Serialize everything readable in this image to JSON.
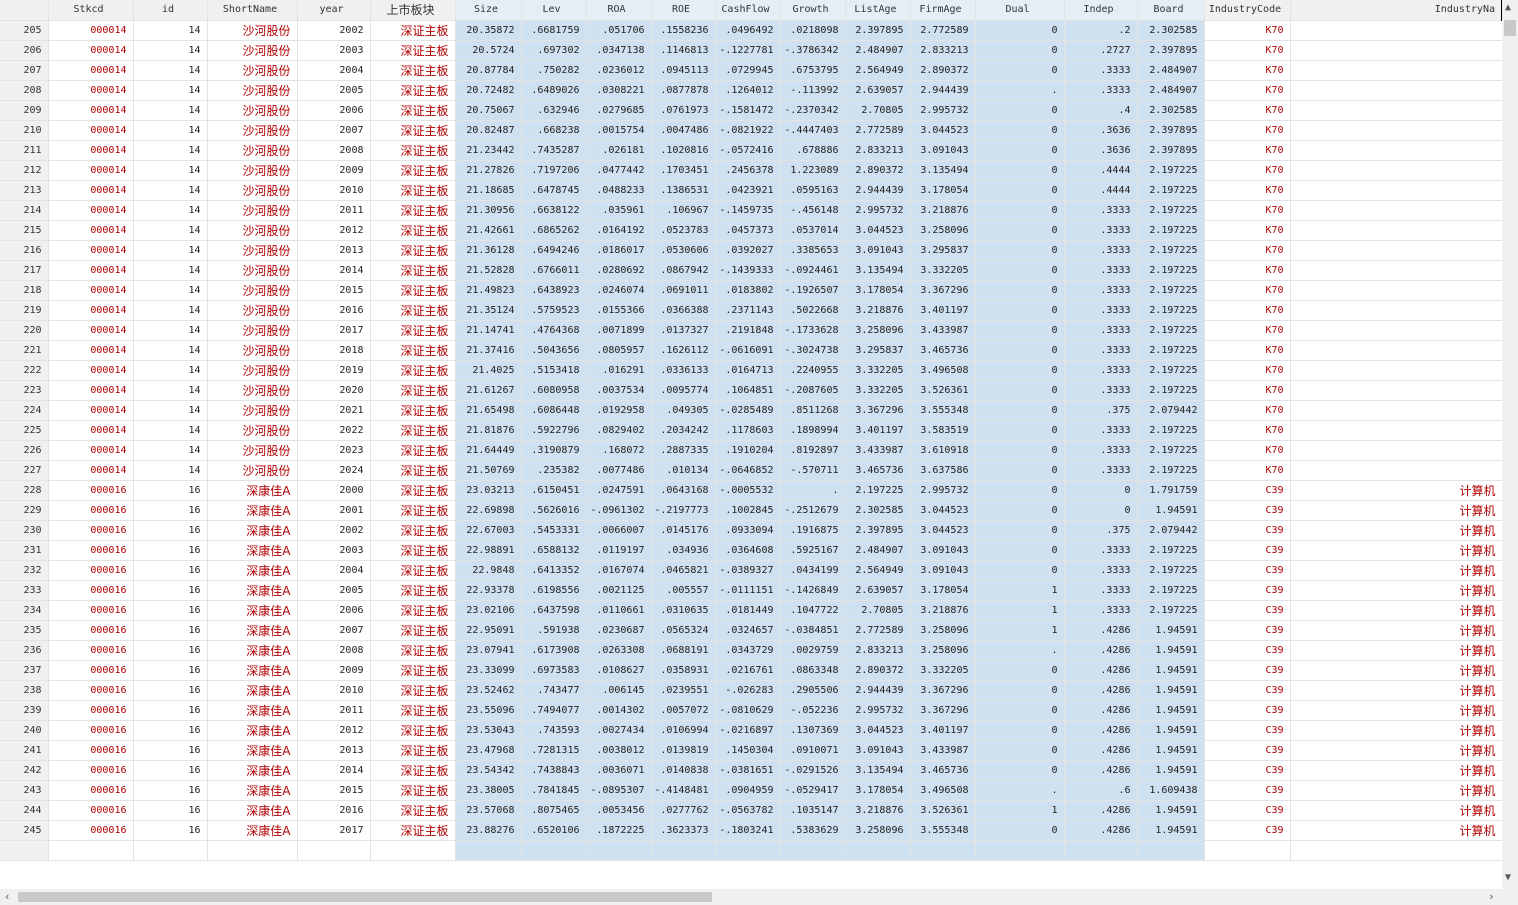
{
  "columns": [
    "",
    "Stkcd",
    "id",
    "ShortName",
    "year",
    "上市板块",
    "Size",
    "Lev",
    "ROA",
    "ROE",
    "CashFlow",
    "Growth",
    "ListAge",
    "FirmAge",
    "Dual",
    "Indep",
    "Board",
    "IndustryCode",
    "IndustryNa"
  ],
  "selected_columns": [
    "Size",
    "Lev",
    "ROA",
    "ROE",
    "CashFlow",
    "Growth",
    "ListAge",
    "FirmAge",
    "Dual",
    "Indep",
    "Board"
  ],
  "colors": {
    "string_text": "#b00000",
    "selection": "#cfe1f1"
  },
  "rows": [
    [
      "205",
      "000014",
      "14",
      "沙河股份",
      "2002",
      "深证主板",
      "20.35872",
      ".6681759",
      ".051706",
      ".1558236",
      ".0496492",
      ".0218098",
      "2.397895",
      "2.772589",
      "0",
      ".2",
      "2.302585",
      "K70",
      ""
    ],
    [
      "206",
      "000014",
      "14",
      "沙河股份",
      "2003",
      "深证主板",
      "20.5724",
      ".697302",
      ".0347138",
      ".1146813",
      "-.1227781",
      "-.3786342",
      "2.484907",
      "2.833213",
      "0",
      ".2727",
      "2.397895",
      "K70",
      ""
    ],
    [
      "207",
      "000014",
      "14",
      "沙河股份",
      "2004",
      "深证主板",
      "20.87784",
      ".750282",
      ".0236012",
      ".0945113",
      ".0729945",
      ".6753795",
      "2.564949",
      "2.890372",
      "0",
      ".3333",
      "2.484907",
      "K70",
      ""
    ],
    [
      "208",
      "000014",
      "14",
      "沙河股份",
      "2005",
      "深证主板",
      "20.72482",
      ".6489026",
      ".0308221",
      ".0877878",
      ".1264012",
      "-.113992",
      "2.639057",
      "2.944439",
      ".",
      ".3333",
      "2.484907",
      "K70",
      ""
    ],
    [
      "209",
      "000014",
      "14",
      "沙河股份",
      "2006",
      "深证主板",
      "20.75067",
      ".632946",
      ".0279685",
      ".0761973",
      "-.1581472",
      "-.2370342",
      "2.70805",
      "2.995732",
      "0",
      ".4",
      "2.302585",
      "K70",
      ""
    ],
    [
      "210",
      "000014",
      "14",
      "沙河股份",
      "2007",
      "深证主板",
      "20.82487",
      ".668238",
      ".0015754",
      ".0047486",
      "-.0821922",
      "-.4447403",
      "2.772589",
      "3.044523",
      "0",
      ".3636",
      "2.397895",
      "K70",
      ""
    ],
    [
      "211",
      "000014",
      "14",
      "沙河股份",
      "2008",
      "深证主板",
      "21.23442",
      ".7435287",
      ".026181",
      ".1020816",
      "-.0572416",
      ".678886",
      "2.833213",
      "3.091043",
      "0",
      ".3636",
      "2.397895",
      "K70",
      ""
    ],
    [
      "212",
      "000014",
      "14",
      "沙河股份",
      "2009",
      "深证主板",
      "21.27826",
      ".7197206",
      ".0477442",
      ".1703451",
      ".2456378",
      "1.223089",
      "2.890372",
      "3.135494",
      "0",
      ".4444",
      "2.197225",
      "K70",
      ""
    ],
    [
      "213",
      "000014",
      "14",
      "沙河股份",
      "2010",
      "深证主板",
      "21.18685",
      ".6478745",
      ".0488233",
      ".1386531",
      ".0423921",
      ".0595163",
      "2.944439",
      "3.178054",
      "0",
      ".4444",
      "2.197225",
      "K70",
      ""
    ],
    [
      "214",
      "000014",
      "14",
      "沙河股份",
      "2011",
      "深证主板",
      "21.30956",
      ".6638122",
      ".035961",
      ".106967",
      "-.1459735",
      "-.456148",
      "2.995732",
      "3.218876",
      "0",
      ".3333",
      "2.197225",
      "K70",
      ""
    ],
    [
      "215",
      "000014",
      "14",
      "沙河股份",
      "2012",
      "深证主板",
      "21.42661",
      ".6865262",
      ".0164192",
      ".0523783",
      ".0457373",
      ".0537014",
      "3.044523",
      "3.258096",
      "0",
      ".3333",
      "2.197225",
      "K70",
      ""
    ],
    [
      "216",
      "000014",
      "14",
      "沙河股份",
      "2013",
      "深证主板",
      "21.36128",
      ".6494246",
      ".0186017",
      ".0530606",
      ".0392027",
      ".3385653",
      "3.091043",
      "3.295837",
      "0",
      ".3333",
      "2.197225",
      "K70",
      ""
    ],
    [
      "217",
      "000014",
      "14",
      "沙河股份",
      "2014",
      "深证主板",
      "21.52828",
      ".6766011",
      ".0280692",
      ".0867942",
      "-.1439333",
      "-.0924461",
      "3.135494",
      "3.332205",
      "0",
      ".3333",
      "2.197225",
      "K70",
      ""
    ],
    [
      "218",
      "000014",
      "14",
      "沙河股份",
      "2015",
      "深证主板",
      "21.49823",
      ".6438923",
      ".0246074",
      ".0691011",
      ".0183802",
      "-.1926507",
      "3.178054",
      "3.367296",
      "0",
      ".3333",
      "2.197225",
      "K70",
      ""
    ],
    [
      "219",
      "000014",
      "14",
      "沙河股份",
      "2016",
      "深证主板",
      "21.35124",
      ".5759523",
      ".0155366",
      ".0366388",
      ".2371143",
      ".5022668",
      "3.218876",
      "3.401197",
      "0",
      ".3333",
      "2.197225",
      "K70",
      ""
    ],
    [
      "220",
      "000014",
      "14",
      "沙河股份",
      "2017",
      "深证主板",
      "21.14741",
      ".4764368",
      ".0071899",
      ".0137327",
      ".2191848",
      "-.1733628",
      "3.258096",
      "3.433987",
      "0",
      ".3333",
      "2.197225",
      "K70",
      ""
    ],
    [
      "221",
      "000014",
      "14",
      "沙河股份",
      "2018",
      "深证主板",
      "21.37416",
      ".5043656",
      ".0805957",
      ".1626112",
      "-.0616091",
      "-.3024738",
      "3.295837",
      "3.465736",
      "0",
      ".3333",
      "2.197225",
      "K70",
      ""
    ],
    [
      "222",
      "000014",
      "14",
      "沙河股份",
      "2019",
      "深证主板",
      "21.4025",
      ".5153418",
      ".016291",
      ".0336133",
      ".0164713",
      ".2240955",
      "3.332205",
      "3.496508",
      "0",
      ".3333",
      "2.197225",
      "K70",
      ""
    ],
    [
      "223",
      "000014",
      "14",
      "沙河股份",
      "2020",
      "深证主板",
      "21.61267",
      ".6080958",
      ".0037534",
      ".0095774",
      ".1064851",
      "-.2087605",
      "3.332205",
      "3.526361",
      "0",
      ".3333",
      "2.197225",
      "K70",
      ""
    ],
    [
      "224",
      "000014",
      "14",
      "沙河股份",
      "2021",
      "深证主板",
      "21.65498",
      ".6086448",
      ".0192958",
      ".049305",
      "-.0285489",
      ".8511268",
      "3.367296",
      "3.555348",
      "0",
      ".375",
      "2.079442",
      "K70",
      ""
    ],
    [
      "225",
      "000014",
      "14",
      "沙河股份",
      "2022",
      "深证主板",
      "21.81876",
      ".5922796",
      ".0829402",
      ".2034242",
      ".1178603",
      ".1898994",
      "3.401197",
      "3.583519",
      "0",
      ".3333",
      "2.197225",
      "K70",
      ""
    ],
    [
      "226",
      "000014",
      "14",
      "沙河股份",
      "2023",
      "深证主板",
      "21.64449",
      ".3190879",
      ".168072",
      ".2887335",
      ".1910204",
      ".8192897",
      "3.433987",
      "3.610918",
      "0",
      ".3333",
      "2.197225",
      "K70",
      ""
    ],
    [
      "227",
      "000014",
      "14",
      "沙河股份",
      "2024",
      "深证主板",
      "21.50769",
      ".235382",
      ".0077486",
      ".010134",
      "-.0646852",
      "-.570711",
      "3.465736",
      "3.637586",
      "0",
      ".3333",
      "2.197225",
      "K70",
      ""
    ],
    [
      "228",
      "000016",
      "16",
      "深康佳A",
      "2000",
      "深证主板",
      "23.03213",
      ".6150451",
      ".0247591",
      ".0643168",
      "-.0005532",
      ".",
      "2.197225",
      "2.995732",
      "0",
      "0",
      "1.791759",
      "C39",
      "计算机"
    ],
    [
      "229",
      "000016",
      "16",
      "深康佳A",
      "2001",
      "深证主板",
      "22.69898",
      ".5626016",
      "-.0961302",
      "-.2197773",
      ".1002845",
      "-.2512679",
      "2.302585",
      "3.044523",
      "0",
      "0",
      "1.94591",
      "C39",
      "计算机"
    ],
    [
      "230",
      "000016",
      "16",
      "深康佳A",
      "2002",
      "深证主板",
      "22.67003",
      ".5453331",
      ".0066007",
      ".0145176",
      ".0933094",
      ".1916875",
      "2.397895",
      "3.044523",
      "0",
      ".375",
      "2.079442",
      "C39",
      "计算机"
    ],
    [
      "231",
      "000016",
      "16",
      "深康佳A",
      "2003",
      "深证主板",
      "22.98891",
      ".6588132",
      ".0119197",
      ".034936",
      ".0364608",
      ".5925167",
      "2.484907",
      "3.091043",
      "0",
      ".3333",
      "2.197225",
      "C39",
      "计算机"
    ],
    [
      "232",
      "000016",
      "16",
      "深康佳A",
      "2004",
      "深证主板",
      "22.9848",
      ".6413352",
      ".0167074",
      ".0465821",
      "-.0389327",
      ".0434199",
      "2.564949",
      "3.091043",
      "0",
      ".3333",
      "2.197225",
      "C39",
      "计算机"
    ],
    [
      "233",
      "000016",
      "16",
      "深康佳A",
      "2005",
      "深证主板",
      "22.93378",
      ".6198556",
      ".0021125",
      ".005557",
      "-.0111151",
      "-.1426849",
      "2.639057",
      "3.178054",
      "1",
      ".3333",
      "2.197225",
      "C39",
      "计算机"
    ],
    [
      "234",
      "000016",
      "16",
      "深康佳A",
      "2006",
      "深证主板",
      "23.02106",
      ".6437598",
      ".0110661",
      ".0310635",
      ".0181449",
      ".1047722",
      "2.70805",
      "3.218876",
      "1",
      ".3333",
      "2.197225",
      "C39",
      "计算机"
    ],
    [
      "235",
      "000016",
      "16",
      "深康佳A",
      "2007",
      "深证主板",
      "22.95091",
      ".591938",
      ".0230687",
      ".0565324",
      ".0324657",
      "-.0384851",
      "2.772589",
      "3.258096",
      "1",
      ".4286",
      "1.94591",
      "C39",
      "计算机"
    ],
    [
      "236",
      "000016",
      "16",
      "深康佳A",
      "2008",
      "深证主板",
      "23.07941",
      ".6173908",
      ".0263308",
      ".0688191",
      ".0343729",
      ".0029759",
      "2.833213",
      "3.258096",
      ".",
      ".4286",
      "1.94591",
      "C39",
      "计算机"
    ],
    [
      "237",
      "000016",
      "16",
      "深康佳A",
      "2009",
      "深证主板",
      "23.33099",
      ".6973583",
      ".0108627",
      ".0358931",
      ".0216761",
      ".0863348",
      "2.890372",
      "3.332205",
      "0",
      ".4286",
      "1.94591",
      "C39",
      "计算机"
    ],
    [
      "238",
      "000016",
      "16",
      "深康佳A",
      "2010",
      "深证主板",
      "23.52462",
      ".743477",
      ".006145",
      ".0239551",
      "-.026283",
      ".2905506",
      "2.944439",
      "3.367296",
      "0",
      ".4286",
      "1.94591",
      "C39",
      "计算机"
    ],
    [
      "239",
      "000016",
      "16",
      "深康佳A",
      "2011",
      "深证主板",
      "23.55096",
      ".7494077",
      ".0014302",
      ".0057072",
      "-.0810629",
      "-.052236",
      "2.995732",
      "3.367296",
      "0",
      ".4286",
      "1.94591",
      "C39",
      "计算机"
    ],
    [
      "240",
      "000016",
      "16",
      "深康佳A",
      "2012",
      "深证主板",
      "23.53043",
      ".743593",
      ".0027434",
      ".0106994",
      "-.0216897",
      ".1307369",
      "3.044523",
      "3.401197",
      "0",
      ".4286",
      "1.94591",
      "C39",
      "计算机"
    ],
    [
      "241",
      "000016",
      "16",
      "深康佳A",
      "2013",
      "深证主板",
      "23.47968",
      ".7281315",
      ".0038012",
      ".0139819",
      ".1450304",
      ".0910071",
      "3.091043",
      "3.433987",
      "0",
      ".4286",
      "1.94591",
      "C39",
      "计算机"
    ],
    [
      "242",
      "000016",
      "16",
      "深康佳A",
      "2014",
      "深证主板",
      "23.54342",
      ".7438843",
      ".0036071",
      ".0140838",
      "-.0381651",
      "-.0291526",
      "3.135494",
      "3.465736",
      "0",
      ".4286",
      "1.94591",
      "C39",
      "计算机"
    ],
    [
      "243",
      "000016",
      "16",
      "深康佳A",
      "2015",
      "深证主板",
      "23.38005",
      ".7841845",
      "-.0895307",
      "-.4148481",
      ".0904959",
      "-.0529417",
      "3.178054",
      "3.496508",
      ".",
      ".6",
      "1.609438",
      "C39",
      "计算机"
    ],
    [
      "244",
      "000016",
      "16",
      "深康佳A",
      "2016",
      "深证主板",
      "23.57068",
      ".8075465",
      ".0053456",
      ".0277762",
      "-.0563782",
      ".1035147",
      "3.218876",
      "3.526361",
      "1",
      ".4286",
      "1.94591",
      "C39",
      "计算机"
    ],
    [
      "245",
      "000016",
      "16",
      "深康佳A",
      "2017",
      "深证主板",
      "23.88276",
      ".6520106",
      ".1872225",
      ".3623373",
      "-.1803241",
      ".5383629",
      "3.258096",
      "3.555348",
      "0",
      ".4286",
      "1.94591",
      "C39",
      "计算机"
    ]
  ],
  "icons": {
    "scroll_up": "chevron-up-icon",
    "scroll_down": "chevron-down-icon",
    "scroll_left": "chevron-left-icon",
    "scroll_right": "chevron-right-icon"
  }
}
